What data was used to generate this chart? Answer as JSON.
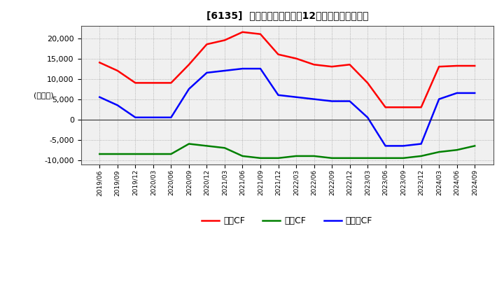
{
  "title": "[6135]  キャッシュフローの12か月移動合計の推移",
  "ylabel": "(百万円)",
  "ylim": [
    -11000,
    23000
  ],
  "yticks": [
    -10000,
    -5000,
    0,
    5000,
    10000,
    15000,
    20000
  ],
  "legend": [
    "営業CF",
    "投資CF",
    "フリーCF"
  ],
  "line_colors": [
    "#ff0000",
    "#008000",
    "#0000ff"
  ],
  "background_color": "#ffffff",
  "plot_bg_color": "#f0f0f0",
  "dates": [
    "2019/06",
    "2019/09",
    "2019/12",
    "2020/03",
    "2020/06",
    "2020/09",
    "2020/12",
    "2021/03",
    "2021/06",
    "2021/09",
    "2021/12",
    "2022/03",
    "2022/06",
    "2022/09",
    "2022/12",
    "2023/03",
    "2023/06",
    "2023/09",
    "2023/12",
    "2024/03",
    "2024/06",
    "2024/09"
  ],
  "operating_cf": [
    14000,
    12000,
    9000,
    9000,
    9000,
    13500,
    18500,
    19500,
    21500,
    21000,
    16000,
    15000,
    13500,
    13000,
    13500,
    9000,
    3000,
    3000,
    3000,
    13000,
    13200,
    13200
  ],
  "investing_cf": [
    -8500,
    -8500,
    -8500,
    -8500,
    -8500,
    -6000,
    -6500,
    -7000,
    -9000,
    -9500,
    -9500,
    -9000,
    -9000,
    -9500,
    -9500,
    -9500,
    -9500,
    -9500,
    -9000,
    -8000,
    -7500,
    -6500
  ],
  "free_cf": [
    5500,
    3500,
    500,
    500,
    500,
    7500,
    11500,
    12000,
    12500,
    12500,
    6000,
    5500,
    5000,
    4500,
    4500,
    500,
    -6500,
    -6500,
    -6000,
    5000,
    6500,
    6500
  ]
}
